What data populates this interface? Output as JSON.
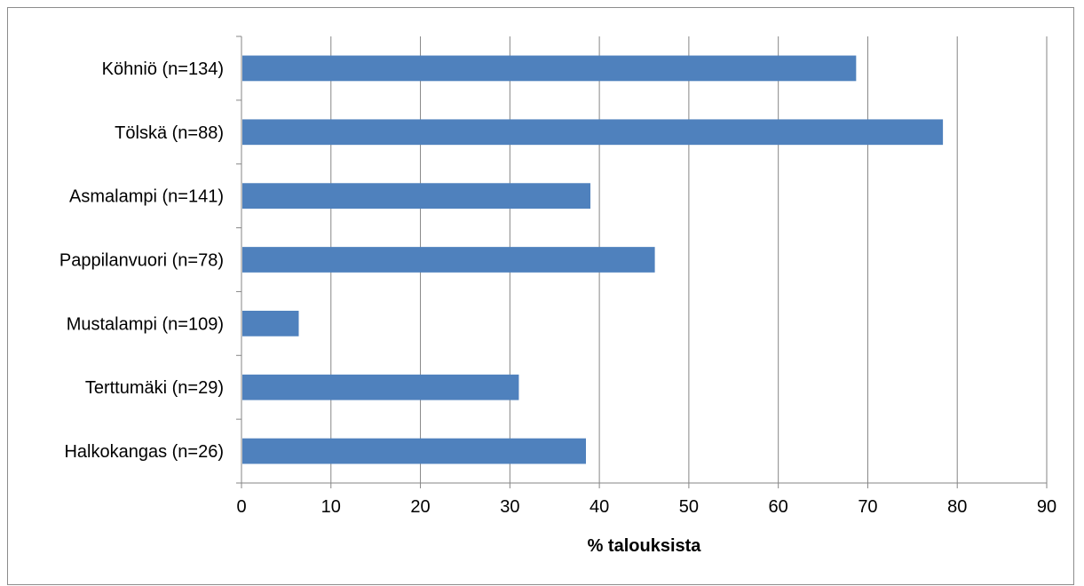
{
  "chart_data": {
    "type": "bar",
    "orientation": "horizontal",
    "categories": [
      "Köhniö (n=134)",
      "Tölskä (n=88)",
      "Asmalampi (n=141)",
      "Pappilanvuori (n=78)",
      "Mustalampi (n=109)",
      "Terttumäki (n=29)",
      "Halkokangas (n=26)"
    ],
    "values": [
      68.7,
      78.4,
      39.0,
      46.2,
      6.4,
      31.0,
      38.5
    ],
    "title": "",
    "xlabel": "% talouksista",
    "ylabel": "",
    "xlim": [
      0,
      90
    ],
    "xticks": [
      "0",
      "10",
      "20",
      "30",
      "40",
      "50",
      "60",
      "70",
      "80",
      "90"
    ],
    "grid": "vertical",
    "legend": "none",
    "colors": {
      "bar": "#4f81bd",
      "grid": "#868686",
      "axis": "#868686"
    }
  }
}
